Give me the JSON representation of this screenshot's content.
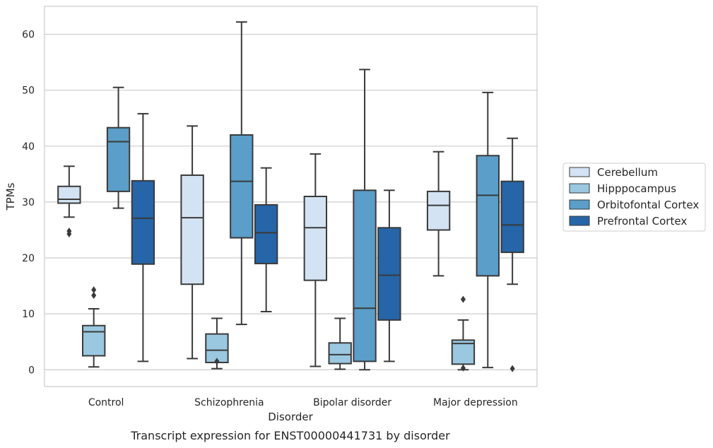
{
  "caption": "Transcript expression for ENST00000441731 by disorder",
  "chart_data": {
    "type": "boxplot",
    "title": "",
    "xlabel": "Disorder",
    "ylabel": "TPMs",
    "ylim": [
      -3,
      65
    ],
    "yticks": [
      0,
      10,
      20,
      30,
      40,
      50,
      60
    ],
    "grid": "horizontal",
    "legend_position": "right",
    "categories": [
      "Control",
      "Schizophrenia",
      "Bipolar disorder",
      "Major depression"
    ],
    "series": [
      {
        "name": "Cerebellum",
        "color": "#d3e3f3",
        "boxes": [
          {
            "whislo": 27.3,
            "q1": 29.8,
            "med": 30.5,
            "q3": 32.8,
            "whishi": 36.4,
            "fliers": [
              24.3,
              24.8
            ]
          },
          {
            "whislo": 2.0,
            "q1": 15.3,
            "med": 27.2,
            "q3": 34.8,
            "whishi": 43.6,
            "fliers": []
          },
          {
            "whislo": 0.6,
            "q1": 16.0,
            "med": 25.4,
            "q3": 31.0,
            "whishi": 38.6,
            "fliers": []
          },
          {
            "whislo": 16.8,
            "q1": 25.0,
            "med": 29.4,
            "q3": 31.9,
            "whishi": 39.0,
            "fliers": []
          }
        ]
      },
      {
        "name": "Hipppocampus",
        "color": "#9ac8e0",
        "boxes": [
          {
            "whislo": 0.5,
            "q1": 2.5,
            "med": 6.8,
            "q3": 7.9,
            "whishi": 10.9,
            "fliers": [
              13.3,
              14.3
            ]
          },
          {
            "whislo": 0.2,
            "q1": 1.3,
            "med": 3.5,
            "q3": 6.4,
            "whishi": 9.2,
            "fliers": [
              1.5
            ]
          },
          {
            "whislo": 0.1,
            "q1": 1.1,
            "med": 2.7,
            "q3": 4.8,
            "whishi": 9.2,
            "fliers": []
          },
          {
            "whislo": 0.0,
            "q1": 1.0,
            "med": 4.7,
            "q3": 5.3,
            "whishi": 8.9,
            "fliers": [
              0.3,
              12.6
            ]
          }
        ]
      },
      {
        "name": "Orbitofontal Cortex",
        "color": "#5a9ec9",
        "boxes": [
          {
            "whislo": 28.9,
            "q1": 31.9,
            "med": 40.8,
            "q3": 43.3,
            "whishi": 50.5,
            "fliers": []
          },
          {
            "whislo": 8.1,
            "q1": 23.6,
            "med": 33.7,
            "q3": 42.0,
            "whishi": 62.2,
            "fliers": []
          },
          {
            "whislo": 0.0,
            "q1": 1.5,
            "med": 11.0,
            "q3": 32.1,
            "whishi": 53.7,
            "fliers": []
          },
          {
            "whislo": 0.4,
            "q1": 16.8,
            "med": 31.2,
            "q3": 38.3,
            "whishi": 49.6,
            "fliers": []
          }
        ]
      },
      {
        "name": "Prefrontal Cortex",
        "color": "#2565a8",
        "boxes": [
          {
            "whislo": 1.5,
            "q1": 18.9,
            "med": 27.1,
            "q3": 33.8,
            "whishi": 45.8,
            "fliers": []
          },
          {
            "whislo": 10.4,
            "q1": 19.0,
            "med": 24.5,
            "q3": 29.5,
            "whishi": 36.1,
            "fliers": []
          },
          {
            "whislo": 1.5,
            "q1": 8.9,
            "med": 16.9,
            "q3": 25.4,
            "whishi": 32.1,
            "fliers": []
          },
          {
            "whislo": 15.3,
            "q1": 21.0,
            "med": 25.9,
            "q3": 33.7,
            "whishi": 41.4,
            "fliers": [
              0.2
            ]
          }
        ]
      }
    ]
  }
}
